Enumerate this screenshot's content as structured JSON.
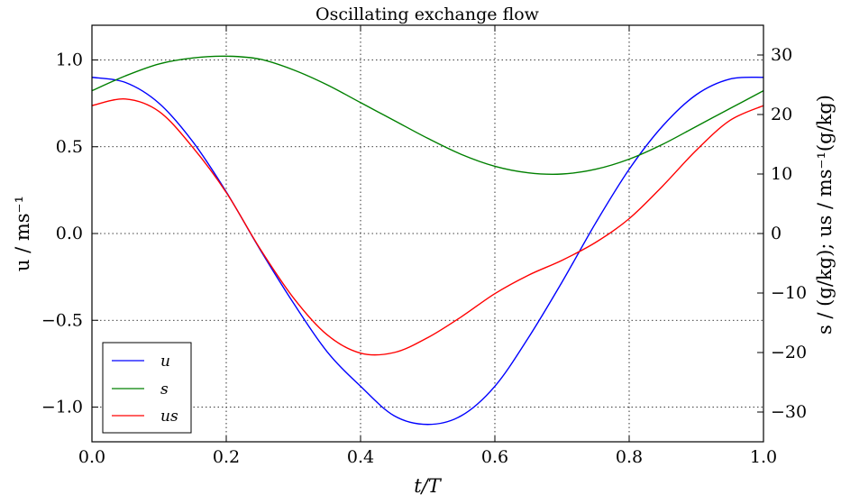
{
  "chart_data": {
    "type": "line",
    "title": "Oscillating exchange flow",
    "xlabel": "t/T",
    "ylabel_left": "u / ms⁻¹",
    "ylabel_right": "s / (g/kg); us / ms⁻¹(g/kg)",
    "xlim": [
      0,
      1
    ],
    "ylim_left": [
      -1.2,
      1.2
    ],
    "ylim_right": [
      -35,
      35
    ],
    "xticks": [
      "0.0",
      "0.2",
      "0.4",
      "0.6",
      "0.8",
      "1.0"
    ],
    "yticks_left": [
      "−1.0",
      "−0.5",
      "0.0",
      "0.5",
      "1.0"
    ],
    "yticks_right": [
      "−30",
      "−20",
      "−10",
      "0",
      "10",
      "20",
      "30"
    ],
    "grid": true,
    "legend_position": "lower-left",
    "x": [
      0.0,
      0.05,
      0.1,
      0.15,
      0.2,
      0.25,
      0.3,
      0.35,
      0.4,
      0.45,
      0.5,
      0.55,
      0.6,
      0.65,
      0.7,
      0.75,
      0.8,
      0.85,
      0.9,
      0.95,
      1.0
    ],
    "series": [
      {
        "name": "u",
        "axis": "left",
        "color": "#0000ff",
        "values": [
          0.9,
          0.87,
          0.75,
          0.53,
          0.24,
          -0.09,
          -0.4,
          -0.68,
          -0.88,
          -1.05,
          -1.1,
          -1.05,
          -0.88,
          -0.6,
          -0.28,
          0.06,
          0.37,
          0.62,
          0.8,
          0.89,
          0.9
        ]
      },
      {
        "name": "s",
        "axis": "right",
        "color": "#008000",
        "values": [
          24.0,
          26.5,
          28.5,
          29.5,
          29.8,
          29.3,
          27.5,
          25.0,
          22.0,
          19.0,
          16.0,
          13.3,
          11.3,
          10.2,
          10.0,
          10.8,
          12.5,
          15.0,
          18.0,
          21.0,
          24.0
        ]
      },
      {
        "name": "us",
        "axis": "right",
        "color": "#ff0000",
        "values": [
          21.5,
          22.6,
          20.5,
          14.5,
          6.9,
          -2.5,
          -10.8,
          -17.0,
          -20.1,
          -20.0,
          -17.5,
          -14.0,
          -10.1,
          -7.0,
          -4.5,
          -1.5,
          2.5,
          8.0,
          14.0,
          19.0,
          21.5
        ]
      }
    ]
  }
}
